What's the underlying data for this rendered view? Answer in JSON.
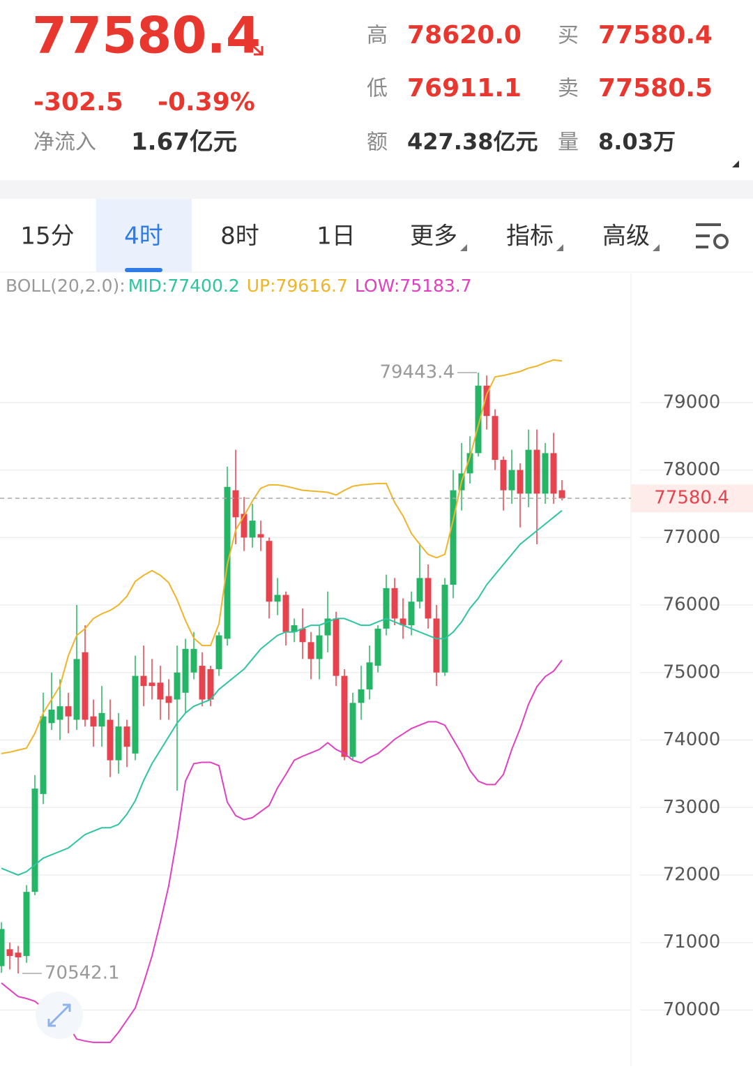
{
  "header": {
    "price": "77580.4",
    "change": "-302.5",
    "change_pct": "-0.39%",
    "net_inflow_label": "净流入",
    "net_inflow": "1.67亿元",
    "stats": [
      {
        "label": "高",
        "value": "78620.0",
        "color": "#e8372f"
      },
      {
        "label": "低",
        "value": "76911.1",
        "color": "#e8372f"
      },
      {
        "label": "额",
        "value": "427.38亿元",
        "color": "#333333"
      },
      {
        "label": "买",
        "value": "77580.4",
        "color": "#e8372f"
      },
      {
        "label": "卖",
        "value": "77580.5",
        "color": "#e8372f"
      },
      {
        "label": "量",
        "value": "8.03万",
        "color": "#333333"
      }
    ]
  },
  "tabs": [
    "15分",
    "4时",
    "8时",
    "1日",
    "更多",
    "指标",
    "高级"
  ],
  "active_tab": 1,
  "chart_data": {
    "type": "candlestick",
    "legend_title": "BOLL(20,2.0):",
    "up_color": "#26b566",
    "down_color": "#e5434e",
    "open": [
      70650,
      70900,
      70850,
      70800,
      71750,
      73200,
      74250,
      74300,
      74500,
      74300,
      75300,
      74350,
      74200,
      74300,
      73700,
      74200,
      73800,
      74950,
      74850,
      74850,
      74650,
      74600,
      74700,
      75000,
      75100,
      75050,
      75050,
      75500,
      77700,
      77350,
      77000,
      77050,
      76950,
      76050,
      76150,
      75600,
      75650,
      75450,
      75200,
      75550,
      75800,
      74950,
      73750,
      74550,
      74750,
      75100,
      75650,
      76250,
      75800,
      75700,
      76050,
      76400,
      75800,
      75000,
      76300,
      77700,
      77950,
      78250,
      79250,
      78800,
      78150,
      77700,
      78000,
      77650,
      78300,
      77650,
      78250,
      77700
    ],
    "high": [
      71300,
      71000,
      70950,
      71850,
      73480,
      74700,
      75000,
      74900,
      74700,
      76000,
      75700,
      74600,
      74800,
      74600,
      74400,
      74300,
      75250,
      75400,
      75200,
      75100,
      74900,
      75400,
      75500,
      75600,
      75300,
      75100,
      75600,
      78050,
      78300,
      77600,
      77500,
      77250,
      77000,
      76400,
      76200,
      75800,
      75950,
      75600,
      75700,
      76200,
      75900,
      75050,
      74700,
      75100,
      75400,
      75700,
      76450,
      76400,
      76100,
      76200,
      76900,
      76600,
      76000,
      76400,
      78000,
      78400,
      78500,
      79443.4,
      79400,
      78900,
      78200,
      78300,
      78100,
      78600,
      78600,
      78400,
      78550,
      77850
    ],
    "low": [
      70550,
      70600,
      70542.1,
      70700,
      71700,
      73050,
      74150,
      74000,
      74100,
      74150,
      74200,
      73900,
      73900,
      73450,
      73500,
      73600,
      73700,
      74500,
      74600,
      74300,
      74300,
      73250,
      74400,
      74900,
      74500,
      74500,
      74950,
      75400,
      76900,
      76800,
      76850,
      76800,
      75800,
      75850,
      75400,
      75450,
      75200,
      74900,
      74900,
      75300,
      74800,
      73700,
      73700,
      74300,
      74600,
      75000,
      75550,
      75700,
      75500,
      75550,
      75950,
      75650,
      74800,
      74950,
      76100,
      77400,
      77800,
      78200,
      78600,
      78000,
      77400,
      77500,
      77150,
      77450,
      76900,
      77500,
      77500,
      77550
    ],
    "close": [
      71200,
      70800,
      70780,
      71750,
      73280,
      74350,
      74450,
      74500,
      74350,
      75200,
      74300,
      74200,
      74400,
      73700,
      74200,
      73900,
      74950,
      74800,
      74800,
      74600,
      74550,
      75000,
      75350,
      75350,
      74600,
      74600,
      75550,
      77750,
      77300,
      77000,
      77250,
      77000,
      76050,
      76150,
      75600,
      75700,
      75450,
      75200,
      75550,
      75800,
      74950,
      73750,
      74550,
      74750,
      75150,
      75650,
      76250,
      75800,
      75700,
      76050,
      76400,
      75800,
      75000,
      76300,
      77700,
      77950,
      78250,
      79250,
      78800,
      78150,
      77700,
      78000,
      77650,
      78300,
      77650,
      78250,
      77650,
      77580.4
    ],
    "series": [
      {
        "name": "MID:77400.2",
        "color": "#2ec4a0",
        "values": [
          72100,
          72050,
          72000,
          72050,
          72150,
          72250,
          72300,
          72350,
          72400,
          72500,
          72600,
          72650,
          72700,
          72700,
          72750,
          72900,
          73100,
          73400,
          73650,
          73850,
          74050,
          74250,
          74400,
          74500,
          74550,
          74600,
          74750,
          74850,
          74950,
          75050,
          75200,
          75350,
          75450,
          75550,
          75600,
          75600,
          75650,
          75700,
          75700,
          75750,
          75800,
          75800,
          75750,
          75700,
          75700,
          75750,
          75800,
          75750,
          75700,
          75650,
          75600,
          75550,
          75500,
          75500,
          75600,
          75750,
          75950,
          76100,
          76300,
          76450,
          76600,
          76750,
          76900,
          77000,
          77100,
          77200,
          77300,
          77400.2
        ]
      },
      {
        "name": "UP:79616.7",
        "color": "#f0b429",
        "values": [
          73800,
          73820,
          73850,
          73880,
          74100,
          74400,
          74600,
          74800,
          75250,
          75550,
          75650,
          75800,
          75870,
          75920,
          76000,
          76130,
          76350,
          76440,
          76510,
          76440,
          76330,
          76080,
          75770,
          75510,
          75400,
          75400,
          75720,
          76600,
          77110,
          77320,
          77540,
          77730,
          77780,
          77780,
          77760,
          77730,
          77700,
          77690,
          77680,
          77670,
          77630,
          77700,
          77760,
          77780,
          77790,
          77800,
          77800,
          77520,
          77320,
          77060,
          76900,
          76750,
          76700,
          76750,
          77260,
          77830,
          78190,
          78660,
          79120,
          79380,
          79400,
          79430,
          79460,
          79510,
          79540,
          79590,
          79630,
          79616.7
        ]
      },
      {
        "name": "LOW:75183.7",
        "color": "#e040c0",
        "values": [
          70400,
          70300,
          70200,
          70170,
          70130,
          70030,
          69930,
          69850,
          69770,
          69570,
          69540,
          69520,
          69520,
          69520,
          69670,
          69850,
          70030,
          70400,
          70800,
          71300,
          71840,
          72560,
          73390,
          73650,
          73670,
          73670,
          73620,
          73080,
          72880,
          72820,
          72850,
          72940,
          73030,
          73290,
          73490,
          73700,
          73760,
          73810,
          73860,
          73960,
          73860,
          73800,
          73700,
          73660,
          73740,
          73800,
          73900,
          74010,
          74090,
          74170,
          74220,
          74270,
          74270,
          74220,
          74010,
          73800,
          73550,
          73390,
          73340,
          73340,
          73490,
          73860,
          74170,
          74530,
          74790,
          74940,
          75020,
          75183.7
        ]
      }
    ],
    "ylim": [
      69250,
      80880
    ],
    "yticks": [
      70000,
      71000,
      72000,
      73000,
      74000,
      75000,
      76000,
      77000,
      78000,
      79000
    ],
    "grid": true,
    "last_price": 77580.4,
    "annotations": [
      {
        "x": 57,
        "y": 79443.4
      },
      {
        "x": 2,
        "y": 70542.1
      }
    ]
  }
}
